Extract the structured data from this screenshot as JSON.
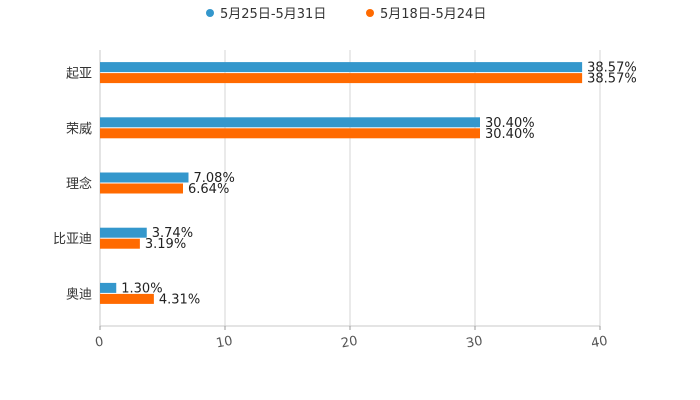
{
  "chart_data": {
    "type": "bar",
    "orientation": "horizontal",
    "categories": [
      "起亚",
      "荣威",
      "理念",
      "比亚迪",
      "奥迪"
    ],
    "series": [
      {
        "name": "5月25日-5月31日",
        "color": "#3497cc",
        "values": [
          38.57,
          30.4,
          7.08,
          3.74,
          1.3
        ],
        "labels": [
          "38.57%",
          "30.40%",
          "7.08%",
          "3.74%",
          "1.30%"
        ]
      },
      {
        "name": "5月18日-5月24日",
        "color": "#ff6a00",
        "values": [
          38.57,
          30.4,
          6.64,
          3.19,
          4.31
        ],
        "labels": [
          "38.57%",
          "30.40%",
          "6.64%",
          "3.19%",
          "4.31%"
        ]
      }
    ],
    "xlim": [
      0,
      40
    ],
    "xticks": [
      "0",
      "10",
      "20",
      "30",
      "40"
    ],
    "legend_position": "top-center",
    "grid": true
  }
}
